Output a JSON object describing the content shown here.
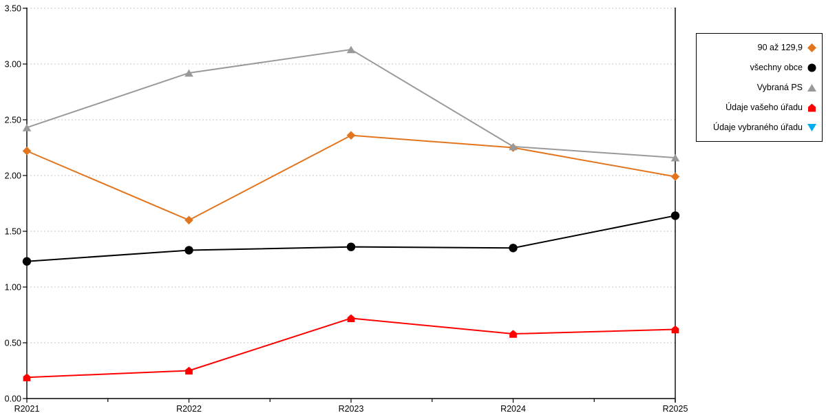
{
  "chart_data": {
    "type": "line",
    "title": "",
    "xlabel": "",
    "ylabel": "",
    "categories": [
      "R2021",
      "R2022",
      "R2023",
      "R2024",
      "R2025"
    ],
    "series": [
      {
        "name": "90 až 129,9",
        "marker": "diamond",
        "color": "#E2751D",
        "values": [
          2.22,
          1.6,
          2.36,
          2.25,
          1.99
        ]
      },
      {
        "name": "všechny obce",
        "marker": "circle",
        "color": "#000000",
        "values": [
          1.23,
          1.33,
          1.36,
          1.35,
          1.64
        ]
      },
      {
        "name": "Vybraná PS",
        "marker": "triangle-up",
        "color": "#999999",
        "values": [
          2.43,
          2.92,
          3.13,
          2.26,
          2.16
        ]
      },
      {
        "name": "Údaje vašeho úřadu",
        "marker": "pentagon",
        "color": "#FF0000",
        "values": [
          0.19,
          0.25,
          0.72,
          0.58,
          0.62
        ]
      },
      {
        "name": "Údaje vybraného úřadu",
        "marker": "triangle-down",
        "color": "#00AEEF",
        "values": []
      }
    ],
    "yticks": [
      "0.00",
      "0.50",
      "1.00",
      "1.50",
      "2.00",
      "2.50",
      "3.00",
      "3.50"
    ],
    "ylim": [
      0,
      3.5
    ],
    "grid": "horizontal-dotted",
    "grid_color": "#C6C6C6",
    "axis_color": "#000000",
    "legend_position": "right"
  }
}
